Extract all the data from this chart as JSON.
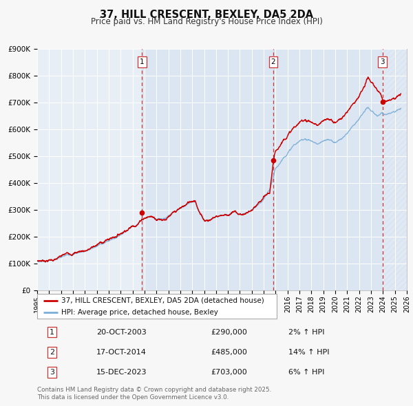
{
  "title": "37, HILL CRESCENT, BEXLEY, DA5 2DA",
  "subtitle": "Price paid vs. HM Land Registry's House Price Index (HPI)",
  "red_label": "37, HILL CRESCENT, BEXLEY, DA5 2DA (detached house)",
  "blue_label": "HPI: Average price, detached house, Bexley",
  "sale1_date": "20-OCT-2003",
  "sale1_price": 290000,
  "sale1_hpi": "2% ↑ HPI",
  "sale1_year": 2003.8,
  "sale2_date": "17-OCT-2014",
  "sale2_price": 485000,
  "sale2_hpi": "14% ↑ HPI",
  "sale2_year": 2014.8,
  "sale3_date": "15-DEC-2023",
  "sale3_price": 703000,
  "sale3_hpi": "6% ↑ HPI",
  "sale3_year": 2023.96,
  "ymin": 0,
  "ymax": 900000,
  "xmin": 1995,
  "xmax": 2026,
  "fig_bg": "#f7f7f7",
  "plot_bg": "#e8eef5",
  "grid_color": "#ffffff",
  "red_color": "#cc0000",
  "blue_color": "#7aaed6",
  "dashed_color": "#cc3333",
  "shade_color": "#c5d8ee",
  "footnote": "Contains HM Land Registry data © Crown copyright and database right 2025.\nThis data is licensed under the Open Government Licence v3.0."
}
